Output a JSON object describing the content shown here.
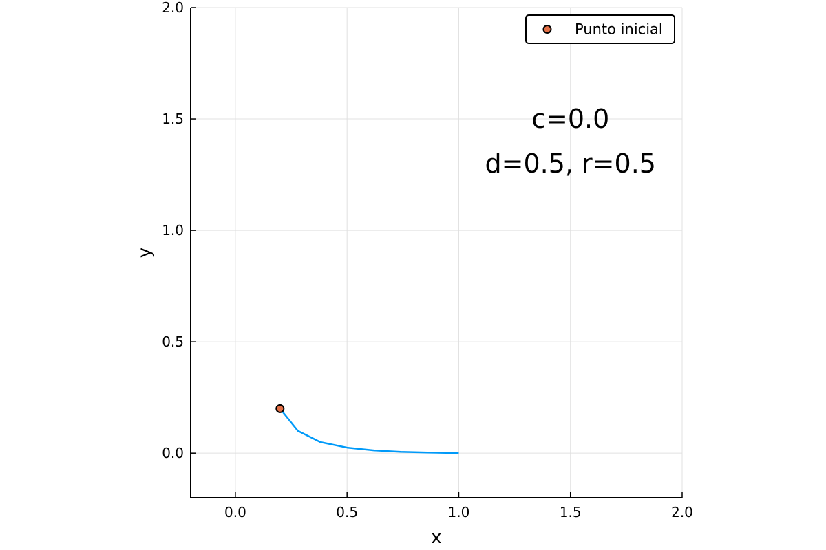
{
  "chart_data": {
    "type": "line",
    "xlabel": "x",
    "ylabel": "y",
    "xlim": [
      -0.2,
      2.0
    ],
    "ylim": [
      -0.2,
      2.0
    ],
    "x_ticks": [
      0.0,
      0.5,
      1.0,
      1.5,
      2.0
    ],
    "y_ticks": [
      0.0,
      0.5,
      1.0,
      1.5,
      2.0
    ],
    "x_tick_labels": [
      "0.0",
      "0.5",
      "1.0",
      "1.5",
      "2.0"
    ],
    "y_tick_labels": [
      "0.0",
      "0.5",
      "1.0",
      "1.5",
      "2.0"
    ],
    "grid": true,
    "legend_position": "top-right",
    "series": [
      {
        "type": "line",
        "color": "#009af9",
        "x": [
          0.2,
          0.28,
          0.38,
          0.5,
          0.62,
          0.74,
          0.86,
          1.0
        ],
        "y": [
          0.2,
          0.1,
          0.05,
          0.025,
          0.0125,
          0.006,
          0.003,
          0.0
        ]
      },
      {
        "type": "scatter",
        "name": "Punto inicial",
        "color": "#e26f46",
        "x": [
          0.2
        ],
        "y": [
          0.2
        ]
      }
    ],
    "annotations": [
      {
        "text": "c=0.0",
        "x": 1.5,
        "y": 1.5
      },
      {
        "text": "d=0.5, r=0.5",
        "x": 1.5,
        "y": 1.3
      }
    ]
  }
}
